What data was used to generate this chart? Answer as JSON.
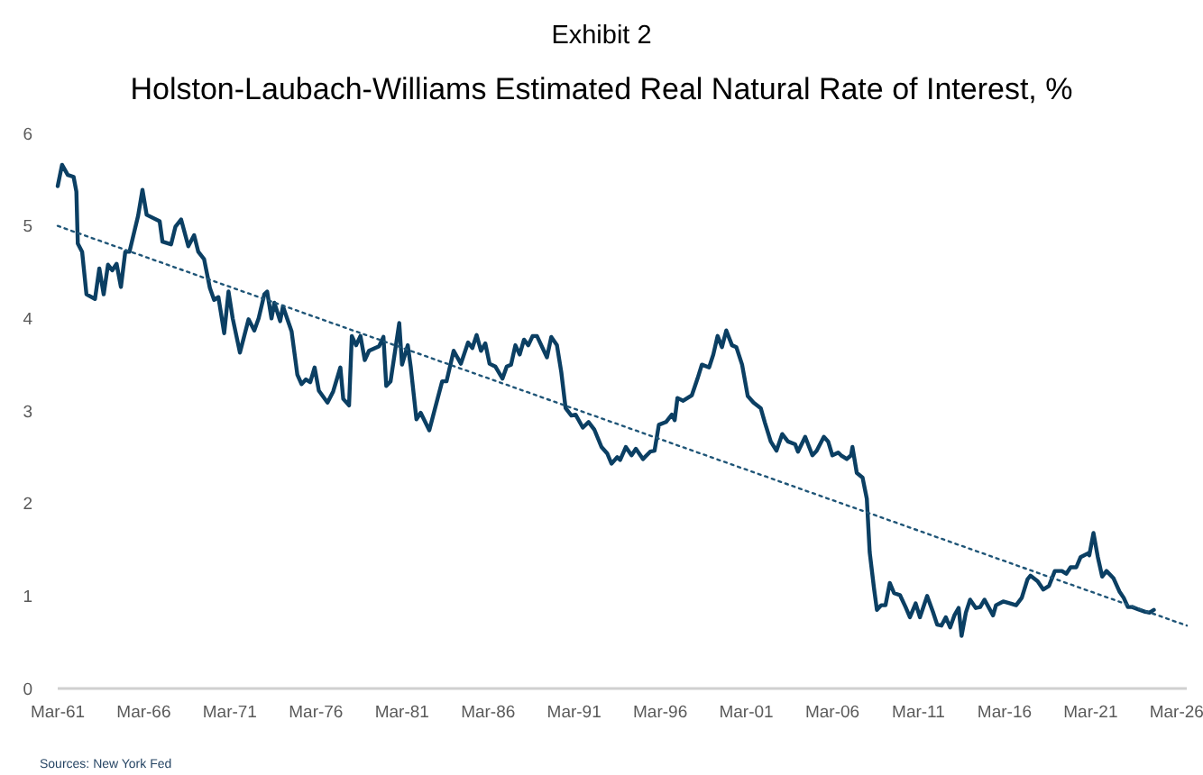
{
  "chart_data": {
    "type": "line",
    "title": "Exhibit 2",
    "subtitle": "Holston-Laubach-Williams Estimated Real Natural Rate of Interest, %",
    "annotations": [
      "Sources: New York Fed"
    ],
    "xlim": [
      "1961-03",
      "2026-10"
    ],
    "xticks": [
      {
        "value": "1961-03",
        "label": "Mar-61"
      },
      {
        "value": "1966-03",
        "label": "Mar-66"
      },
      {
        "value": "1971-03",
        "label": "Mar-71"
      },
      {
        "value": "1976-03",
        "label": "Mar-76"
      },
      {
        "value": "1981-03",
        "label": "Mar-81"
      },
      {
        "value": "1986-03",
        "label": "Mar-86"
      },
      {
        "value": "1991-03",
        "label": "Mar-91"
      },
      {
        "value": "1996-03",
        "label": "Mar-96"
      },
      {
        "value": "2001-03",
        "label": "Mar-01"
      },
      {
        "value": "2006-03",
        "label": "Mar-06"
      },
      {
        "value": "2011-03",
        "label": "Mar-11"
      },
      {
        "value": "2016-03",
        "label": "Mar-16"
      },
      {
        "value": "2021-03",
        "label": "Mar-21"
      },
      {
        "value": "2026-03",
        "label": "Mar-26"
      }
    ],
    "ylim": [
      0,
      6
    ],
    "yticks": [
      0,
      1,
      2,
      3,
      4,
      5,
      6
    ],
    "grid": false,
    "marker": "none",
    "series": [
      {
        "color": "#0b3f63",
        "line_style": "solid",
        "x": [
          "1961-03",
          "1961-06",
          "1961-10",
          "1962-02",
          "1962-04",
          "1962-05",
          "1962-08",
          "1962-11",
          "1963-05",
          "1963-08",
          "1963-11",
          "1964-02",
          "1964-05",
          "1964-08",
          "1964-11",
          "1965-02",
          "1965-05",
          "1965-11",
          "1966-02",
          "1966-05",
          "1967-02",
          "1967-04",
          "1967-10",
          "1968-01",
          "1968-05",
          "1968-10",
          "1969-02",
          "1969-05",
          "1969-09",
          "1970-01",
          "1970-04",
          "1970-07",
          "1970-11",
          "1971-02",
          "1971-05",
          "1971-10",
          "1972-04",
          "1972-08",
          "1972-11",
          "1973-03",
          "1973-05",
          "1973-08",
          "1973-10",
          "1974-02",
          "1974-04",
          "1974-10",
          "1975-02",
          "1975-05",
          "1975-08",
          "1975-11",
          "1976-02",
          "1976-05",
          "1976-11",
          "1977-03",
          "1977-08",
          "1977-10",
          "1978-02",
          "1978-04",
          "1978-07",
          "1978-10",
          "1979-01",
          "1979-04",
          "1979-11",
          "1980-02",
          "1980-04",
          "1980-07",
          "1981-01",
          "1981-03",
          "1981-07",
          "1981-09",
          "1982-01",
          "1982-04",
          "1982-10",
          "1983-02",
          "1983-07",
          "1983-10",
          "1984-03",
          "1984-08",
          "1985-01",
          "1985-04",
          "1985-07",
          "1985-10",
          "1986-01",
          "1986-04",
          "1986-08",
          "1987-01",
          "1987-04",
          "1987-07",
          "1987-10",
          "1988-01",
          "1988-04",
          "1988-07",
          "1988-10",
          "1989-01",
          "1989-08",
          "1989-11",
          "1990-03",
          "1990-06",
          "1990-09",
          "1991-01",
          "1991-04",
          "1991-09",
          "1992-01",
          "1992-05",
          "1992-10",
          "1993-02",
          "1993-05",
          "1993-09",
          "1993-11",
          "1994-03",
          "1994-07",
          "1994-10",
          "1995-03",
          "1995-08",
          "1995-11",
          "1996-02",
          "1996-07",
          "1996-11",
          "1997-01",
          "1997-03",
          "1997-07",
          "1998-01",
          "1998-05",
          "1998-08",
          "1999-01",
          "1999-04",
          "1999-07",
          "1999-10",
          "2000-01",
          "2000-05",
          "2000-08",
          "2000-12",
          "2001-04",
          "2001-08",
          "2002-01",
          "2002-04",
          "2002-08",
          "2002-12",
          "2003-04",
          "2003-08",
          "2004-01",
          "2004-03",
          "2004-08",
          "2005-01",
          "2005-04",
          "2005-09",
          "2005-12",
          "2006-03",
          "2006-07",
          "2006-09",
          "2007-01",
          "2007-04",
          "2007-05",
          "2007-08",
          "2007-12",
          "2008-03",
          "2008-05",
          "2008-08",
          "2008-10",
          "2009-01",
          "2009-04",
          "2009-07",
          "2009-10",
          "2010-02",
          "2010-06",
          "2010-09",
          "2011-01",
          "2011-04",
          "2011-09",
          "2012-01",
          "2012-04",
          "2012-07",
          "2012-10",
          "2013-01",
          "2013-04",
          "2013-07",
          "2013-09",
          "2013-12",
          "2014-03",
          "2014-07",
          "2014-10",
          "2015-01",
          "2015-07",
          "2015-09",
          "2016-02",
          "2016-07",
          "2016-11",
          "2017-03",
          "2017-07",
          "2017-09",
          "2018-02",
          "2018-06",
          "2018-10",
          "2019-02",
          "2019-07",
          "2019-10",
          "2020-01",
          "2020-05",
          "2020-08",
          "2021-01",
          "2021-02",
          "2021-05",
          "2021-08",
          "2021-11",
          "2022-02",
          "2022-07",
          "2022-11",
          "2023-02",
          "2023-05",
          "2023-08",
          "2024-01",
          "2024-05",
          "2024-08",
          "2024-11"
        ],
        "values": [
          5.43,
          5.66,
          5.55,
          5.53,
          5.37,
          4.81,
          4.72,
          4.26,
          4.21,
          4.54,
          4.26,
          4.58,
          4.52,
          4.59,
          4.34,
          4.72,
          4.72,
          5.11,
          5.39,
          5.12,
          5.05,
          4.83,
          4.8,
          4.99,
          5.07,
          4.78,
          4.9,
          4.72,
          4.64,
          4.33,
          4.2,
          4.23,
          3.84,
          4.29,
          4.0,
          3.63,
          3.99,
          3.87,
          4.0,
          4.26,
          4.29,
          4.0,
          4.17,
          3.97,
          4.13,
          3.86,
          3.39,
          3.29,
          3.34,
          3.31,
          3.47,
          3.22,
          3.09,
          3.21,
          3.47,
          3.13,
          3.06,
          3.81,
          3.71,
          3.81,
          3.55,
          3.65,
          3.7,
          3.8,
          3.27,
          3.32,
          3.95,
          3.5,
          3.71,
          3.48,
          2.91,
          2.98,
          2.79,
          3.03,
          3.32,
          3.32,
          3.65,
          3.51,
          3.74,
          3.68,
          3.82,
          3.65,
          3.73,
          3.51,
          3.48,
          3.35,
          3.48,
          3.5,
          3.71,
          3.61,
          3.77,
          3.71,
          3.81,
          3.81,
          3.58,
          3.8,
          3.71,
          3.42,
          3.03,
          2.95,
          2.96,
          2.82,
          2.88,
          2.8,
          2.61,
          2.54,
          2.43,
          2.5,
          2.47,
          2.61,
          2.52,
          2.59,
          2.48,
          2.56,
          2.57,
          2.85,
          2.88,
          2.96,
          2.9,
          3.14,
          3.11,
          3.17,
          3.35,
          3.5,
          3.47,
          3.61,
          3.81,
          3.69,
          3.87,
          3.71,
          3.69,
          3.5,
          3.16,
          3.09,
          3.03,
          2.87,
          2.67,
          2.57,
          2.75,
          2.67,
          2.64,
          2.56,
          2.72,
          2.52,
          2.57,
          2.72,
          2.67,
          2.52,
          2.55,
          2.52,
          2.48,
          2.52,
          2.61,
          2.33,
          2.28,
          2.05,
          1.47,
          1.08,
          0.85,
          0.9,
          0.9,
          1.14,
          1.03,
          1.01,
          0.88,
          0.77,
          0.92,
          0.77,
          1.0,
          0.83,
          0.69,
          0.68,
          0.77,
          0.66,
          0.79,
          0.87,
          0.57,
          0.82,
          0.96,
          0.87,
          0.88,
          0.96,
          0.79,
          0.9,
          0.94,
          0.92,
          0.9,
          0.98,
          1.18,
          1.22,
          1.16,
          1.07,
          1.11,
          1.27,
          1.27,
          1.24,
          1.31,
          1.31,
          1.42,
          1.46,
          1.44,
          1.68,
          1.42,
          1.21,
          1.27,
          1.19,
          1.05,
          0.98,
          0.88,
          0.88,
          0.85,
          0.83,
          0.82,
          0.85
        ]
      },
      {
        "type": "line",
        "color": "#1f5577",
        "line_style": "dotted",
        "x": [
          "1961-03",
          "2026-10"
        ],
        "values": [
          5.0,
          0.68
        ]
      }
    ]
  }
}
